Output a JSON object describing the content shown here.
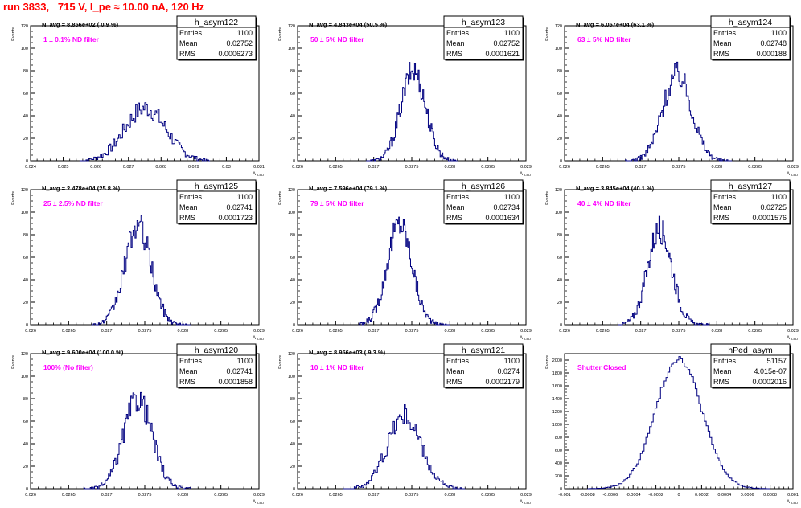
{
  "page_title": "run 3833,   715 V, I_pe ≈ 10.00 nA, 120 Hz",
  "colors": {
    "hist": "#000080",
    "label": "#ff00ff",
    "title": "#ff0000",
    "axis": "#000000"
  },
  "stat_labels": {
    "entries": "Entries",
    "mean": "Mean",
    "rms": "RMS"
  },
  "ylabel": "Events",
  "xlabel": "A",
  "xlabel_sub": "LED",
  "chart_data": [
    {
      "type": "bar",
      "name": "h_asym122",
      "navg": "N_avg = 8.856e+02 ( 0.9 %)",
      "filter": "1 ± 0.1% ND filter",
      "entries": "1100",
      "mean": "0.02752",
      "rms": "0.0006273",
      "xlim": [
        0.024,
        0.031
      ],
      "ylim": [
        0,
        120
      ],
      "xticks": [
        "0.024",
        "0.025",
        "0.026",
        "0.027",
        "0.028",
        "0.029",
        "0.03",
        "0.031"
      ],
      "yticks": [
        "0",
        "20",
        "40",
        "60",
        "80",
        "100",
        "120"
      ],
      "gauss": {
        "mu": 0.02752,
        "sigma": 0.00063,
        "peak": 47,
        "bins": 100,
        "lo": 0.0255,
        "hi": 0.0295
      }
    },
    {
      "type": "bar",
      "name": "h_asym123",
      "navg": "N_avg = 4.843e+04 (50.5 %)",
      "filter": "50 ± 5% ND filter",
      "entries": "1100",
      "mean": "0.02752",
      "rms": "0.0001621",
      "xlim": [
        0.026,
        0.029
      ],
      "ylim": [
        0,
        120
      ],
      "xticks": [
        "0.026",
        "0.0265",
        "0.027",
        "0.0275",
        "0.028",
        "0.0285",
        "0.029"
      ],
      "yticks": [
        "0",
        "20",
        "40",
        "60",
        "80",
        "100",
        "120"
      ],
      "gauss": {
        "mu": 0.02752,
        "sigma": 0.000162,
        "peak": 80,
        "bins": 100,
        "lo": 0.0269,
        "hi": 0.0281
      }
    },
    {
      "type": "bar",
      "name": "h_asym124",
      "navg": "N_avg = 6.057e+04 (63.1 %)",
      "filter": "63 ± 5% ND filter",
      "entries": "1100",
      "mean": "0.02748",
      "rms": "0.000188",
      "xlim": [
        0.026,
        0.029
      ],
      "ylim": [
        0,
        120
      ],
      "xticks": [
        "0.026",
        "0.0265",
        "0.027",
        "0.0275",
        "0.028",
        "0.0285",
        "0.029"
      ],
      "yticks": [
        "0",
        "20",
        "40",
        "60",
        "80",
        "100",
        "120"
      ],
      "gauss": {
        "mu": 0.02748,
        "sigma": 0.000188,
        "peak": 77,
        "bins": 100,
        "lo": 0.0268,
        "hi": 0.0282
      }
    },
    {
      "type": "bar",
      "name": "h_asym125",
      "navg": "N_avg = 2.478e+04 (25.8 %)",
      "filter": "25 ± 2.5% ND filter",
      "entries": "1100",
      "mean": "0.02741",
      "rms": "0.0001723",
      "xlim": [
        0.026,
        0.029
      ],
      "ylim": [
        0,
        120
      ],
      "xticks": [
        "0.026",
        "0.0265",
        "0.027",
        "0.0275",
        "0.028",
        "0.0285",
        "0.029"
      ],
      "yticks": [
        "0",
        "20",
        "40",
        "60",
        "80",
        "100",
        "120"
      ],
      "gauss": {
        "mu": 0.02741,
        "sigma": 0.000172,
        "peak": 88,
        "bins": 100,
        "lo": 0.0268,
        "hi": 0.0281
      }
    },
    {
      "type": "bar",
      "name": "h_asym126",
      "navg": "N_avg = 7.596e+04 (79.1 %)",
      "filter": "79 ± 5% ND filter",
      "entries": "1100",
      "mean": "0.02734",
      "rms": "0.0001634",
      "xlim": [
        0.026,
        0.029
      ],
      "ylim": [
        0,
        120
      ],
      "xticks": [
        "0.026",
        "0.0265",
        "0.027",
        "0.0275",
        "0.028",
        "0.0285",
        "0.029"
      ],
      "yticks": [
        "0",
        "20",
        "40",
        "60",
        "80",
        "100",
        "120"
      ],
      "gauss": {
        "mu": 0.02734,
        "sigma": 0.000163,
        "peak": 90,
        "bins": 100,
        "lo": 0.0268,
        "hi": 0.028
      }
    },
    {
      "type": "bar",
      "name": "h_asym127",
      "navg": "N_avg = 3.845e+04 (40.1 %)",
      "filter": "40 ± 4% ND filter",
      "entries": "1100",
      "mean": "0.02725",
      "rms": "0.0001576",
      "xlim": [
        0.026,
        0.029
      ],
      "ylim": [
        0,
        120
      ],
      "xticks": [
        "0.026",
        "0.0265",
        "0.027",
        "0.0275",
        "0.028",
        "0.0285",
        "0.029"
      ],
      "yticks": [
        "0",
        "20",
        "40",
        "60",
        "80",
        "100",
        "120"
      ],
      "gauss": {
        "mu": 0.02725,
        "sigma": 0.000158,
        "peak": 85,
        "bins": 100,
        "lo": 0.0267,
        "hi": 0.0279
      }
    },
    {
      "type": "bar",
      "name": "h_asym120",
      "navg": "N_avg = 9.600e+04 (100.0 %)",
      "filter": "100% (No filter)",
      "entries": "1100",
      "mean": "0.02741",
      "rms": "0.0001858",
      "xlim": [
        0.026,
        0.029
      ],
      "ylim": [
        0,
        120
      ],
      "xticks": [
        "0.026",
        "0.0265",
        "0.027",
        "0.0275",
        "0.028",
        "0.0285",
        "0.029"
      ],
      "yticks": [
        "0",
        "20",
        "40",
        "60",
        "80",
        "100",
        "120"
      ],
      "gauss": {
        "mu": 0.02741,
        "sigma": 0.000186,
        "peak": 80,
        "bins": 100,
        "lo": 0.0267,
        "hi": 0.0281
      }
    },
    {
      "type": "bar",
      "name": "h_asym121",
      "navg": "N_avg = 8.956e+03 ( 9.3 %)",
      "filter": "10 ± 1% ND filter",
      "entries": "1100",
      "mean": "0.0274",
      "rms": "0.0002179",
      "xlim": [
        0.026,
        0.029
      ],
      "ylim": [
        0,
        120
      ],
      "xticks": [
        "0.026",
        "0.0265",
        "0.027",
        "0.0275",
        "0.028",
        "0.0285",
        "0.029"
      ],
      "yticks": [
        "0",
        "20",
        "40",
        "60",
        "80",
        "100",
        "120"
      ],
      "gauss": {
        "mu": 0.0274,
        "sigma": 0.000218,
        "peak": 65,
        "bins": 100,
        "lo": 0.0266,
        "hi": 0.0282
      }
    },
    {
      "type": "bar",
      "name": "hPed_asym",
      "navg": "",
      "filter": "Shutter Closed",
      "entries": "51157",
      "mean": "4.015e-07",
      "rms": "0.0002016",
      "xlim": [
        -0.001,
        0.001
      ],
      "ylim": [
        0,
        2100
      ],
      "xticks": [
        "-0.001",
        "-0.0008",
        "-0.0006",
        "-0.0004",
        "-0.0002",
        "0",
        "0.0002",
        "0.0004",
        "0.0006",
        "0.0008",
        "0.001"
      ],
      "yticks": [
        "0",
        "200",
        "400",
        "600",
        "800",
        "1000",
        "1200",
        "1400",
        "1600",
        "1800",
        "2000"
      ],
      "gauss": {
        "mu": 4e-07,
        "sigma": 0.0002016,
        "peak": 2030,
        "bins": 100,
        "lo": -0.0008,
        "hi": 0.0008
      }
    }
  ]
}
